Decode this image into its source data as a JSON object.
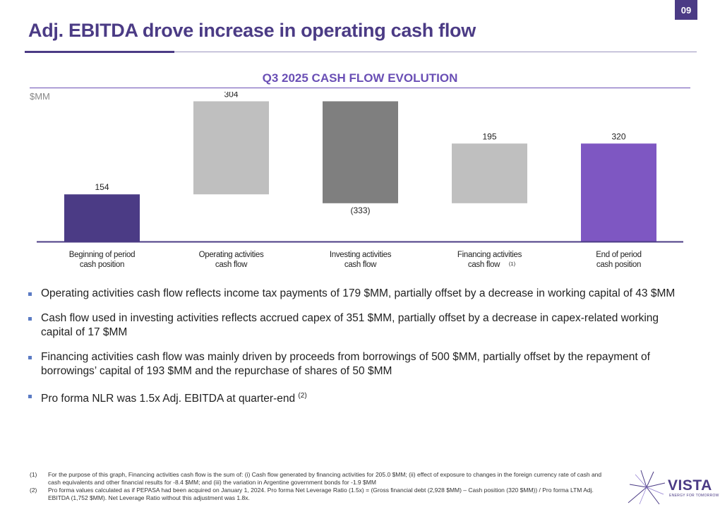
{
  "page": {
    "number": "09",
    "title": "Adj. EBITDA drove increase in operating cash flow"
  },
  "chart_data": {
    "type": "bar",
    "subtype": "waterfall",
    "title": "Q3 2025 CASH FLOW EVOLUTION",
    "ylabel": "$MM",
    "categories": [
      [
        "Beginning of period",
        "cash position"
      ],
      [
        "Operating activities",
        "cash flow"
      ],
      [
        "Investing activities",
        "cash flow"
      ],
      [
        "Financing activities",
        "cash flow"
      ],
      [
        "End of period",
        "cash position"
      ]
    ],
    "category_footnotes": [
      "",
      "",
      "",
      "(1)",
      ""
    ],
    "values": [
      154,
      304,
      -333,
      195,
      320
    ],
    "value_labels": [
      "154",
      "304",
      "(333)",
      "195",
      "320"
    ],
    "bar_kinds": [
      "total",
      "delta",
      "delta",
      "delta",
      "total"
    ],
    "colors": [
      "#4b3b85",
      "#bfbfbf",
      "#7f7f7f",
      "#bfbfbf",
      "#7e57c2"
    ]
  },
  "bullets": [
    {
      "text": "Operating activities cash flow reflects income tax payments of 179 $MM, partially offset by a decrease in working capital of 43 $MM",
      "sup": ""
    },
    {
      "text": "Cash flow used in investing activities reflects accrued capex of 351 $MM, partially offset by a decrease in capex-related working capital of 17 $MM",
      "sup": ""
    },
    {
      "text": "Financing activities cash flow was mainly driven by proceeds from borrowings of 500 $MM, partially offset by the repayment of borrowings’ capital of 193 $MM and the repurchase of shares of 50 $MM",
      "sup": ""
    },
    {
      "text": "Pro forma NLR was 1.5x Adj. EBITDA at quarter-end ",
      "sup": "(2)"
    }
  ],
  "footnotes": [
    {
      "num": "(1)",
      "text": "For the purpose of this graph, Financing activities cash flow is the sum of: (i) Cash flow generated by financing activities for 205.0 $MM; (ii) effect of exposure to changes in the foreign currency rate of cash and cash equivalents and other financial results for -8.4 $MM; and (iii) the variation in Argentine government bonds for -1.9 $MM"
    },
    {
      "num": "(2)",
      "text": "Pro forma values calculated as if PEPASA had been acquired on January 1, 2024. Pro forma Net Leverage Ratio (1.5x) = (Gross financial debt (2,928 $MM) – Cash position (320 $MM)) / Pro forma LTM Adj. EBITDA (1,752 $MM). Net Leverage Ratio without this adjustment was 1.8x."
    }
  ],
  "logo": {
    "name": "VISTA",
    "tagline": "ENERGY FOR TOMORROW"
  }
}
